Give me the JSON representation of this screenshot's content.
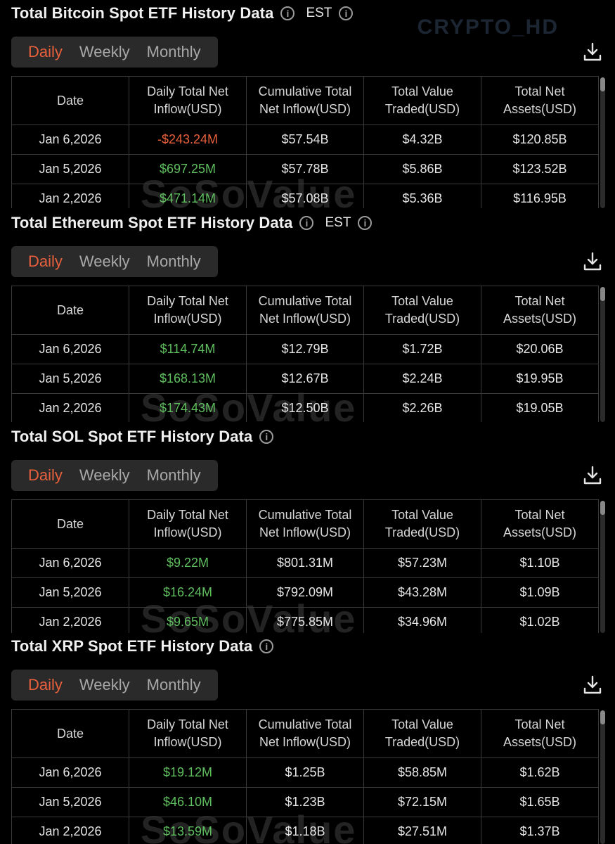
{
  "watermark_brand": "CRYPTO_HD",
  "watermark_logo": "SoSoValue",
  "tab_labels": {
    "daily": "Daily",
    "weekly": "Weekly",
    "monthly": "Monthly"
  },
  "columns": [
    "Date",
    "Daily Total Net Inflow(USD)",
    "Cumulative Total Net Inflow(USD)",
    "Total Value Traded(USD)",
    "Total Net Assets(USD)"
  ],
  "colors": {
    "positive": "#5fbf5f",
    "negative": "#e8603c",
    "active_tab": "#e8603c"
  },
  "sections": [
    {
      "title": "Total Bitcoin Spot ETF History Data",
      "timezone": "EST",
      "active_tab": "Daily",
      "rows": [
        {
          "date": "Jan 6,2026",
          "daily": "-$243.24M",
          "sign": "neg",
          "cumulative": "$57.54B",
          "traded": "$4.32B",
          "assets": "$120.85B"
        },
        {
          "date": "Jan 5,2026",
          "daily": "$697.25M",
          "sign": "pos",
          "cumulative": "$57.78B",
          "traded": "$5.86B",
          "assets": "$123.52B"
        },
        {
          "date": "Jan 2,2026",
          "daily": "$471.14M",
          "sign": "pos",
          "cumulative": "$57.08B",
          "traded": "$5.36B",
          "assets": "$116.95B"
        }
      ]
    },
    {
      "title": "Total Ethereum Spot ETF History Data",
      "timezone": "EST",
      "active_tab": "Daily",
      "rows": [
        {
          "date": "Jan 6,2026",
          "daily": "$114.74M",
          "sign": "pos",
          "cumulative": "$12.79B",
          "traded": "$1.72B",
          "assets": "$20.06B"
        },
        {
          "date": "Jan 5,2026",
          "daily": "$168.13M",
          "sign": "pos",
          "cumulative": "$12.67B",
          "traded": "$2.24B",
          "assets": "$19.95B"
        },
        {
          "date": "Jan 2,2026",
          "daily": "$174.43M",
          "sign": "pos",
          "cumulative": "$12.50B",
          "traded": "$2.26B",
          "assets": "$19.05B"
        }
      ]
    },
    {
      "title": "Total SOL Spot ETF History Data",
      "timezone": "",
      "active_tab": "Daily",
      "rows": [
        {
          "date": "Jan 6,2026",
          "daily": "$9.22M",
          "sign": "pos",
          "cumulative": "$801.31M",
          "traded": "$57.23M",
          "assets": "$1.10B"
        },
        {
          "date": "Jan 5,2026",
          "daily": "$16.24M",
          "sign": "pos",
          "cumulative": "$792.09M",
          "traded": "$43.28M",
          "assets": "$1.09B"
        },
        {
          "date": "Jan 2,2026",
          "daily": "$9.65M",
          "sign": "pos",
          "cumulative": "$775.85M",
          "traded": "$34.96M",
          "assets": "$1.02B"
        }
      ]
    },
    {
      "title": "Total XRP Spot ETF History Data",
      "timezone": "",
      "active_tab": "Daily",
      "rows": [
        {
          "date": "Jan 6,2026",
          "daily": "$19.12M",
          "sign": "pos",
          "cumulative": "$1.25B",
          "traded": "$58.85M",
          "assets": "$1.62B"
        },
        {
          "date": "Jan 5,2026",
          "daily": "$46.10M",
          "sign": "pos",
          "cumulative": "$1.23B",
          "traded": "$72.15M",
          "assets": "$1.65B"
        },
        {
          "date": "Jan 2,2026",
          "daily": "$13.59M",
          "sign": "pos",
          "cumulative": "$1.18B",
          "traded": "$27.51M",
          "assets": "$1.37B"
        }
      ]
    }
  ]
}
